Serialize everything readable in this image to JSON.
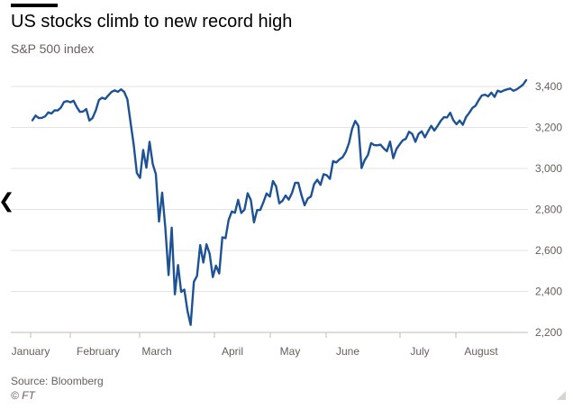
{
  "header": {
    "title": "US stocks climb to new record high",
    "subtitle": "S&P 500 index"
  },
  "footer": {
    "source": "Source: Bloomberg",
    "credit": "© FT"
  },
  "colors": {
    "line": "#1d5294",
    "grid": "#e6e3df",
    "axis": "#66605c"
  },
  "chart_data": {
    "type": "line",
    "title": "US stocks climb to new record high",
    "subtitle": "S&P 500 index",
    "xlabel": "",
    "ylabel": "",
    "ylim": [
      2200,
      3400
    ],
    "y_axis_side": "right",
    "y_ticks": [
      2200,
      2400,
      2600,
      2800,
      3000,
      3200,
      3400
    ],
    "y_tick_labels": [
      "2,200",
      "2,400",
      "2,600",
      "2,800",
      "3,000",
      "3,200",
      "3,400"
    ],
    "x_ticks": [
      "January",
      "February",
      "March",
      "April",
      "May",
      "June",
      "July",
      "August"
    ],
    "grid": true,
    "legend": "none",
    "series": [
      {
        "values": [
          3235,
          3258,
          3246,
          3247,
          3254,
          3274,
          3268,
          3284,
          3283,
          3297,
          3325,
          3329,
          3323,
          3330,
          3300,
          3276,
          3278,
          3290,
          3234,
          3246,
          3283,
          3334,
          3345,
          3339,
          3357,
          3373,
          3381,
          3374,
          3386,
          3373,
          3337,
          3225,
          3116,
          2978,
          2954,
          3090,
          3004,
          3130,
          3023,
          2972,
          2741,
          2882,
          2711,
          2480,
          2711,
          2386,
          2529,
          2398,
          2409,
          2305,
          2237,
          2447,
          2476,
          2626,
          2541,
          2630,
          2584,
          2470,
          2526,
          2488,
          2664,
          2660,
          2749,
          2790,
          2784,
          2847,
          2783,
          2799,
          2879,
          2846,
          2737,
          2797,
          2798,
          2836,
          2878,
          2863,
          2939,
          2912,
          2830,
          2842,
          2868,
          2848,
          2881,
          2930,
          2930,
          2870,
          2820,
          2853,
          2863,
          2923,
          2945,
          2920,
          2972,
          2967,
          2949,
          3036,
          3029,
          3044,
          3055,
          3081,
          3123,
          3193,
          3232,
          3207,
          3002,
          3041,
          3066,
          3124,
          3114,
          3113,
          3116,
          3098,
          3084,
          3131,
          3050,
          3095,
          3117,
          3137,
          3145,
          3179,
          3169,
          3130,
          3169,
          3181,
          3152,
          3181,
          3208,
          3185,
          3207,
          3232,
          3250,
          3249,
          3272,
          3235,
          3216,
          3234,
          3213,
          3251,
          3271,
          3295,
          3306,
          3333,
          3356,
          3360,
          3352,
          3370,
          3349,
          3380,
          3373,
          3381,
          3386,
          3390,
          3379,
          3386,
          3397,
          3409,
          3431
        ]
      }
    ]
  }
}
